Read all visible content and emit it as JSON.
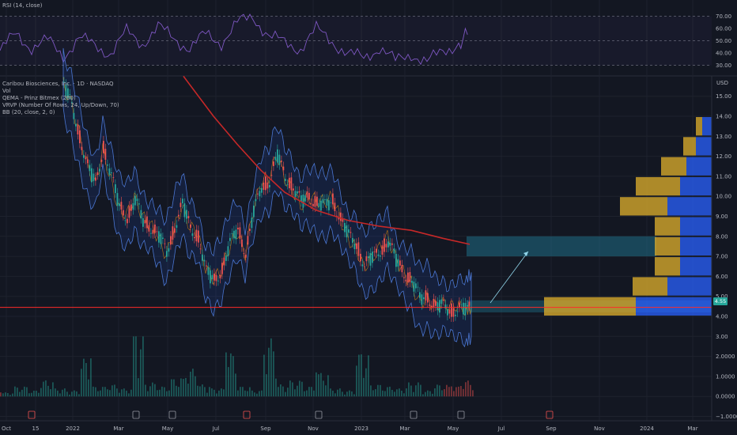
{
  "rsi_legend": "RSI (14, close)",
  "main_legend": {
    "title": "Caribou Biosciences, Inc. · 1D · NASDAQ",
    "lines": [
      "Vol",
      "QEMA - Prinz Bitmex (200)",
      "VRVP (Number Of Rows, 24, Up/Down, 70)",
      "BB (20, close, 2, 0)"
    ]
  },
  "price_axis": {
    "unit": "USD",
    "last_price": "4.55"
  },
  "colors": {
    "background": "#131722",
    "up": "#26a69a",
    "down": "#ef5350",
    "ema": "#c62828",
    "bb": "#4a76d1",
    "rsi": "#7e57c2",
    "vrvp_up": "#2962ff",
    "vrvp_down": "#d4a72c",
    "support": "#ff2a2a"
  },
  "chart_data": [
    {
      "type": "line",
      "name": "rsi",
      "ylim": [
        24,
        78
      ],
      "ticks": [
        30,
        40,
        50,
        60,
        70
      ],
      "tick_labels": [
        "30.00",
        "40.00",
        "50.00",
        "60.00",
        "70.00"
      ],
      "levels": [
        30,
        50,
        70
      ],
      "x": [
        0,
        20,
        40,
        60,
        80,
        100,
        120,
        140,
        160,
        180,
        200,
        220,
        240,
        260,
        280,
        300,
        320,
        340,
        360,
        380,
        400,
        420,
        440,
        460,
        480,
        500,
        520,
        540,
        560,
        580,
        594
      ],
      "y": [
        42,
        55,
        45,
        50,
        38,
        52,
        46,
        40,
        57,
        48,
        61,
        52,
        44,
        55,
        49,
        64,
        70,
        54,
        48,
        44,
        59,
        50,
        39,
        36,
        45,
        33,
        40,
        32,
        42,
        48,
        57
      ]
    },
    {
      "type": "candlestick",
      "name": "price",
      "ylim": [
        -1.3,
        16.2
      ],
      "ticks": [
        -1,
        0,
        1,
        2,
        3,
        4,
        5,
        6,
        7,
        8,
        9,
        10,
        11,
        12,
        13,
        14,
        15
      ],
      "tick_labels": [
        "−1.0000",
        "0.0000",
        "1.0000",
        "2.0000",
        "3.00",
        "4.00",
        "5.00",
        "6.00",
        "7.00",
        "8.00",
        "9.00",
        "10.00",
        "11.00",
        "12.00",
        "13.00",
        "14.00",
        "15.00"
      ],
      "x_ticks": [
        "Oct",
        "15",
        "2022",
        "Mar",
        "May",
        "Jul",
        "Sep",
        "Nov",
        "2023",
        "Mar",
        "May",
        "Jul",
        "Sep",
        "Nov",
        "2024",
        "Mar"
      ],
      "x_tick_pos": [
        8,
        45,
        92,
        150,
        212,
        273,
        336,
        396,
        457,
        512,
        573,
        634,
        697,
        758,
        818,
        876
      ],
      "close_path": {
        "x": [
          80,
          90,
          100,
          110,
          120,
          130,
          140,
          150,
          160,
          170,
          180,
          190,
          200,
          210,
          220,
          230,
          240,
          250,
          260,
          270,
          280,
          290,
          300,
          310,
          320,
          330,
          340,
          350,
          360,
          370,
          380,
          390,
          400,
          410,
          420,
          430,
          440,
          450,
          460,
          470,
          480,
          490,
          500,
          510,
          520,
          530,
          540,
          550,
          560,
          570,
          580,
          590,
          596
        ],
        "y": [
          15.6,
          14.5,
          13.0,
          11.5,
          10.6,
          12.5,
          11.0,
          9.5,
          9.0,
          9.8,
          8.8,
          8.5,
          8.0,
          7.2,
          8.5,
          9.6,
          8.4,
          8.0,
          6.2,
          5.8,
          6.4,
          7.6,
          8.4,
          7.2,
          9.2,
          10.5,
          10.8,
          12.0,
          11.0,
          10.5,
          9.7,
          10.0,
          9.7,
          9.5,
          9.8,
          8.9,
          8.0,
          7.6,
          6.6,
          6.9,
          7.3,
          7.8,
          6.8,
          6.2,
          5.8,
          4.9,
          5.0,
          4.5,
          4.5,
          4.3,
          4.4,
          4.3,
          4.6
        ]
      },
      "ema200": {
        "x": [
          232,
          270,
          300,
          330,
          360,
          400,
          440,
          480,
          520,
          560,
          594
        ],
        "y": [
          16.0,
          14.0,
          12.6,
          11.3,
          10.2,
          9.3,
          8.8,
          8.5,
          8.3,
          7.9,
          7.6
        ]
      },
      "volume_max_units": 3.0,
      "volume_samples": [
        0.2,
        0.5,
        0.3,
        0.8,
        0.4,
        0.3,
        1.9,
        0.5,
        0.6,
        0.4,
        3.0,
        0.7,
        0.5,
        0.9,
        1.4,
        0.6,
        0.4,
        2.2,
        0.5,
        0.3,
        2.9,
        0.6,
        0.8,
        0.5,
        1.2,
        0.4,
        0.3,
        2.1,
        0.6,
        0.5,
        0.4,
        0.7,
        0.3,
        0.6,
        0.5,
        0.8
      ]
    }
  ],
  "overlays": {
    "support_price": 4.45,
    "last_price": 4.55,
    "target_zone": [
      7.0,
      8.0
    ],
    "entry_zone": [
      4.2,
      4.8
    ],
    "vrvp_rows": [
      {
        "price": 13.0,
        "up": 0.3,
        "down": 0.2
      },
      {
        "price": 12.0,
        "up": 0.5,
        "down": 0.4
      },
      {
        "price": 11.0,
        "up": 0.8,
        "down": 0.8
      },
      {
        "price": 10.0,
        "up": 1.0,
        "down": 1.4
      },
      {
        "price": 9.0,
        "up": 1.4,
        "down": 1.5
      },
      {
        "price": 8.0,
        "up": 1.0,
        "down": 0.8
      },
      {
        "price": 7.0,
        "up": 1.0,
        "down": 0.8
      },
      {
        "price": 6.0,
        "up": 1.0,
        "down": 0.8
      },
      {
        "price": 5.0,
        "up": 1.4,
        "down": 1.1
      },
      {
        "price": 4.0,
        "up": 2.4,
        "down": 2.9
      }
    ]
  }
}
